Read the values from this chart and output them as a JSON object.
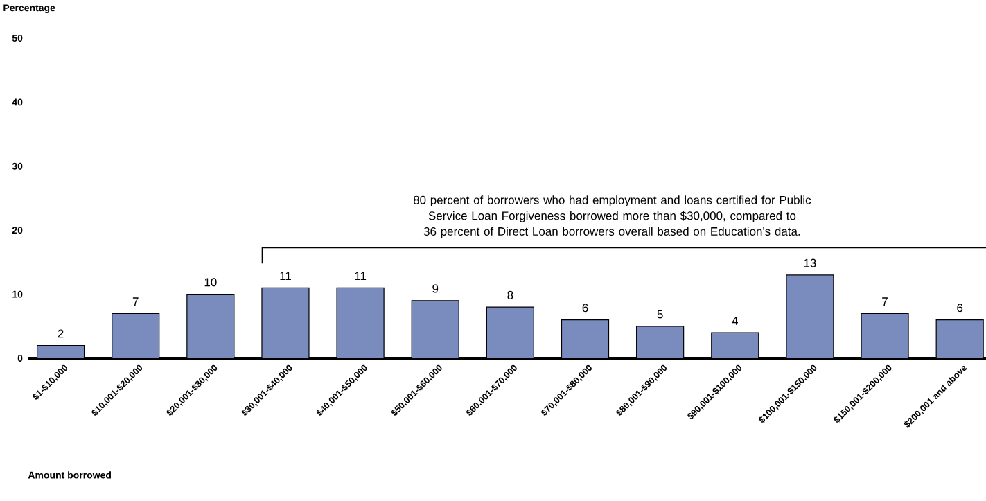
{
  "chart_data": {
    "type": "bar",
    "ylabel": "Percentage",
    "xlabel": "Amount borrowed",
    "categories": [
      "$1-$10,000",
      "$10,001-$20,000",
      "$20,001-$30,000",
      "$30,001-$40,000",
      "$40,001-$50,000",
      "$50,001-$60,000",
      "$60,001-$70,000",
      "$70,001-$80,000",
      "$80,001-$90,000",
      "$90,001-$100,000",
      "$100,001-$150,000",
      "$150,001-$200,000",
      "$200,001 and above"
    ],
    "values": [
      2,
      7,
      10,
      11,
      11,
      9,
      8,
      6,
      5,
      4,
      13,
      7,
      6
    ],
    "color": "#7a8bbd",
    "ylim": [
      0,
      50
    ],
    "yticks": [
      0,
      10,
      20,
      30,
      40,
      50
    ],
    "data_labels": true,
    "grid": false,
    "annotations": [
      "80 percent of borrowers who had employment and loans certified for Public Service Loan Forgiveness borrowed more than $30,000, compared to 36 percent of Direct Loan borrowers overall based on Education's data."
    ]
  }
}
